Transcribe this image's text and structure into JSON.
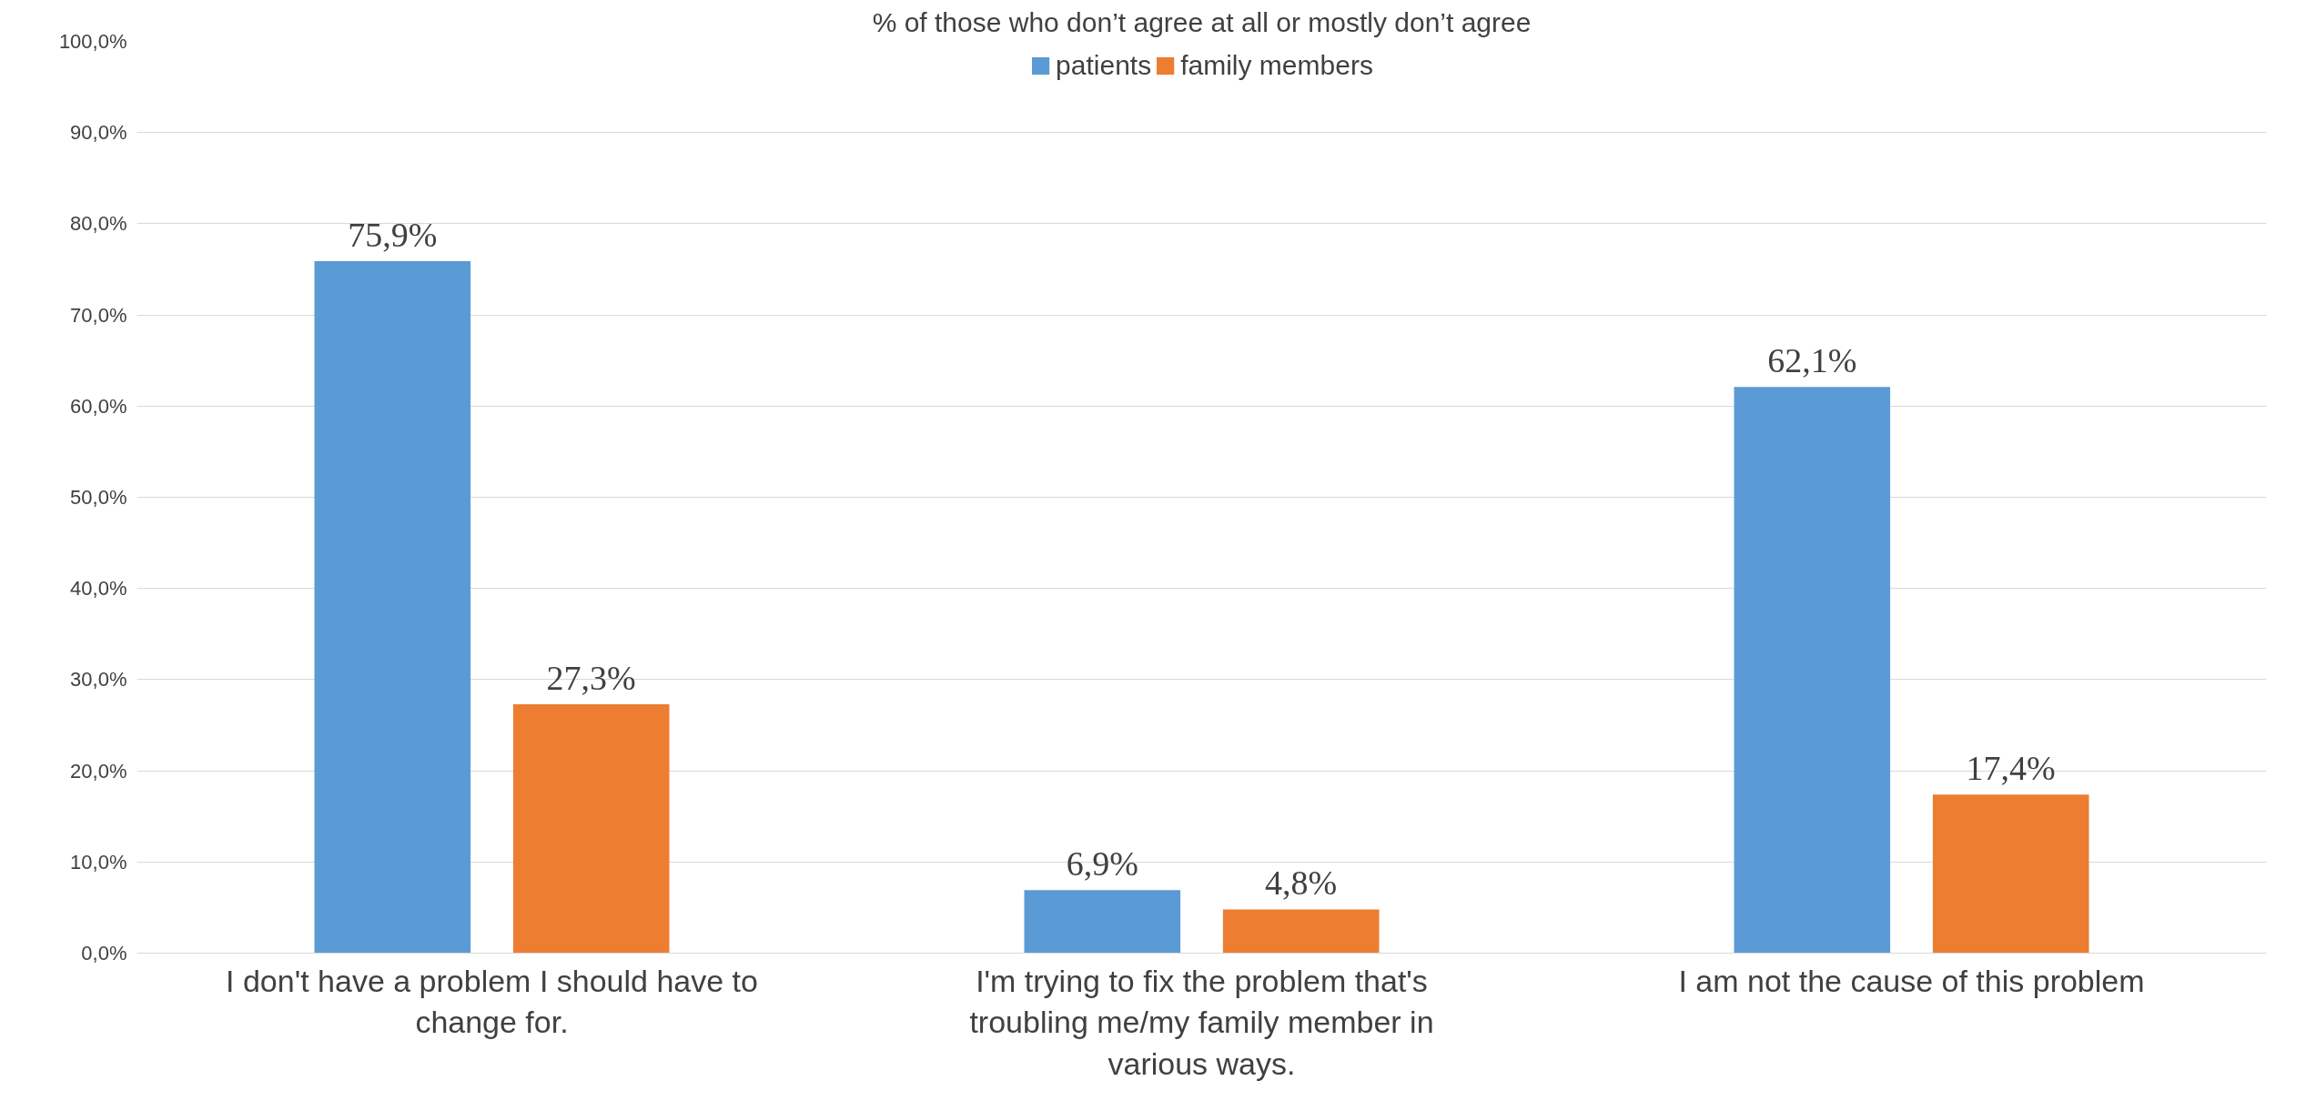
{
  "chart_data": {
    "type": "bar",
    "title": "% of those who don’t agree at all or mostly don’t agree",
    "categories": [
      "I don't have a problem I should have to\nchange for.",
      "I'm trying to fix the problem that's\ntroubling me/my family member in\nvarious ways.",
      "I am not the cause of this problem"
    ],
    "series": [
      {
        "name": "patients",
        "color": "#5b9bd5",
        "values": [
          75.9,
          6.9,
          62.1
        ],
        "value_labels": [
          "75,9%",
          "6,9%",
          "62,1%"
        ]
      },
      {
        "name": "family members",
        "color": "#ed7d31",
        "values": [
          27.3,
          4.8,
          17.4
        ],
        "value_labels": [
          "27,3%",
          "4,8%",
          "17,4%"
        ]
      }
    ],
    "ylim": [
      0,
      100
    ],
    "yticks": [
      {
        "value": 0,
        "label": "0,0%"
      },
      {
        "value": 10,
        "label": "10,0%"
      },
      {
        "value": 20,
        "label": "20,0%"
      },
      {
        "value": 30,
        "label": "30,0%"
      },
      {
        "value": 40,
        "label": "40,0%"
      },
      {
        "value": 50,
        "label": "50,0%"
      },
      {
        "value": 60,
        "label": "60,0%"
      },
      {
        "value": 70,
        "label": "70,0%"
      },
      {
        "value": 80,
        "label": "80,0%"
      },
      {
        "value": 90,
        "label": "90,0%"
      },
      {
        "value": 100,
        "label": "100,0%"
      }
    ],
    "grid": "y",
    "legend": "top"
  }
}
